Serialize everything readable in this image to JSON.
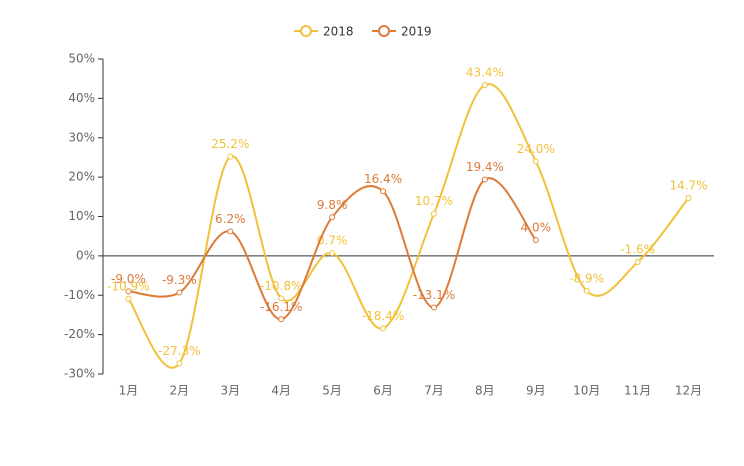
{
  "chart_data": {
    "type": "line",
    "categories": [
      "1月",
      "2月",
      "3月",
      "4月",
      "5月",
      "6月",
      "7月",
      "8月",
      "9月",
      "10月",
      "11月",
      "12月"
    ],
    "series": [
      {
        "name": "2018",
        "color": "#f2c13a",
        "values": [
          -10.9,
          -27.3,
          25.2,
          -10.8,
          0.7,
          -18.4,
          10.7,
          43.4,
          24.0,
          -8.9,
          -1.6,
          14.7
        ],
        "value_labels": [
          "-10.9%",
          "-27.3%",
          "25.2%",
          "-10.8%",
          "0.7%",
          "-18.4%",
          "10.7%",
          "43.4%",
          "24.0%",
          "-8.9%",
          "-1.6%",
          "14.7%"
        ]
      },
      {
        "name": "2019",
        "color": "#dd7b39",
        "values": [
          -9.0,
          -9.3,
          6.2,
          -16.1,
          9.8,
          16.4,
          -13.1,
          19.4,
          4.0,
          null,
          null,
          null
        ],
        "value_labels": [
          "-9.0%",
          "-9.3%",
          "6.2%",
          "-16.1%",
          "9.8%",
          "16.4%",
          "-13.1%",
          "19.4%",
          "4.0%",
          null,
          null,
          null
        ]
      }
    ],
    "ylim": [
      -30,
      50
    ],
    "yticks": [
      {
        "value": -30,
        "label": "-30%"
      },
      {
        "value": -20,
        "label": "-20%"
      },
      {
        "value": -10,
        "label": "-10%"
      },
      {
        "value": 0,
        "label": "0%"
      },
      {
        "value": 10,
        "label": "10%"
      },
      {
        "value": 20,
        "label": "20%"
      },
      {
        "value": 30,
        "label": "30%"
      },
      {
        "value": 40,
        "label": "40%"
      },
      {
        "value": 50,
        "label": "50%"
      }
    ],
    "legend": "top",
    "smooth": true
  }
}
